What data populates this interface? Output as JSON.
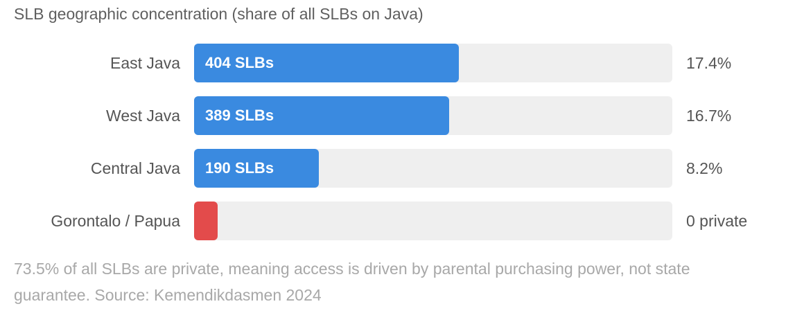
{
  "title": "SLB geographic concentration (share of all SLBs on Java)",
  "chart_data": {
    "type": "bar",
    "orientation": "horizontal",
    "title": "SLB geographic concentration (share of all SLBs on Java)",
    "categories": [
      "East Java",
      "West Java",
      "Central Java",
      "Gorontalo / Papua"
    ],
    "bar_labels": [
      "404 SLBs",
      "389 SLBs",
      "190 SLBs",
      ""
    ],
    "value_labels": [
      "17.4%",
      "16.7%",
      "8.2%",
      "0 private"
    ],
    "values": [
      404,
      389,
      190,
      0
    ],
    "xlim": [
      0,
      730
    ],
    "colors": [
      "#3a8ae0",
      "#3a8ae0",
      "#3a8ae0",
      "#e34b4b"
    ],
    "track_color": "#efefef"
  },
  "footnote": "73.5% of all SLBs are private, meaning access is driven by parental purchasing power, not state guarantee. Source: Kemendikdasmen 2024"
}
